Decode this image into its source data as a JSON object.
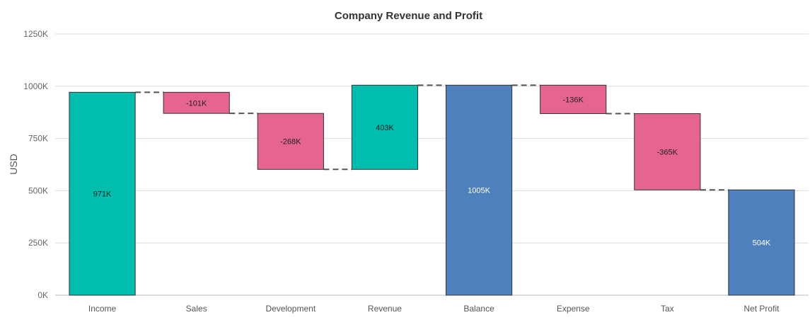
{
  "chart_data": {
    "type": "bar",
    "subtype": "waterfall",
    "title": "Company Revenue and Profit",
    "xlabel": "",
    "ylabel": "USD",
    "ylim": [
      0,
      1250000
    ],
    "yticks": [
      "0K",
      "250K",
      "500K",
      "750K",
      "1000K",
      "1250K"
    ],
    "grid": true,
    "legend": "none",
    "categories": [
      "Income",
      "Sales",
      "Development",
      "Revenue",
      "Balance",
      "Expense",
      "Tax",
      "Net Profit"
    ],
    "bars": [
      {
        "category": "Income",
        "start": 0,
        "end": 971000,
        "label": "971K",
        "kind": "increase"
      },
      {
        "category": "Sales",
        "start": 971000,
        "end": 870000,
        "label": "-101K",
        "kind": "decrease"
      },
      {
        "category": "Development",
        "start": 870000,
        "end": 602000,
        "label": "-268K",
        "kind": "decrease"
      },
      {
        "category": "Revenue",
        "start": 602000,
        "end": 1005000,
        "label": "403K",
        "kind": "increase"
      },
      {
        "category": "Balance",
        "start": 0,
        "end": 1005000,
        "label": "1005K",
        "kind": "total"
      },
      {
        "category": "Expense",
        "start": 1005000,
        "end": 869000,
        "label": "-136K",
        "kind": "decrease"
      },
      {
        "category": "Tax",
        "start": 869000,
        "end": 504000,
        "label": "-365K",
        "kind": "decrease"
      },
      {
        "category": "Net Profit",
        "start": 0,
        "end": 504000,
        "label": "504K",
        "kind": "total"
      }
    ],
    "colors": {
      "increase": "#00bdae",
      "decrease": "#e56590",
      "total": "#4e81bc",
      "connector": "#555555",
      "grid": "#dddddd"
    }
  }
}
